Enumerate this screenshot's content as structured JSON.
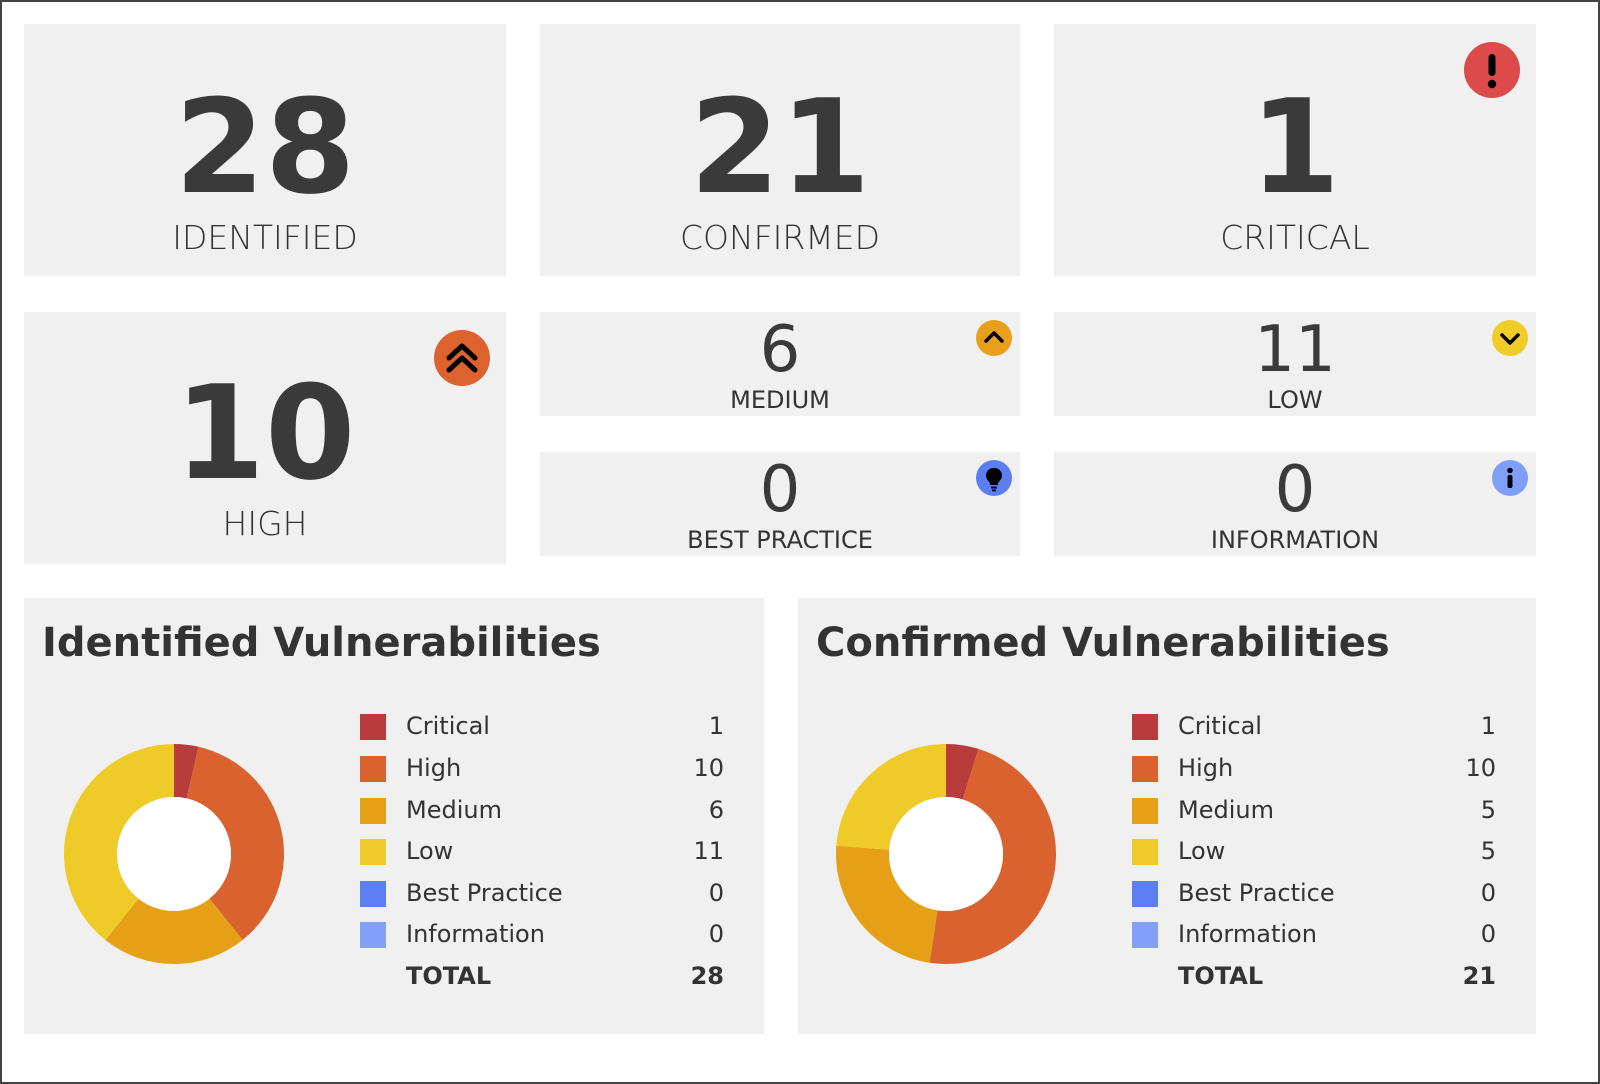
{
  "tiles": {
    "identified": {
      "value": "28",
      "label": "IDENTIFIED"
    },
    "confirmed": {
      "value": "21",
      "label": "CONFIRMED"
    },
    "critical": {
      "value": "1",
      "label": "CRITICAL",
      "icon": "exclamation-icon",
      "color": "#dc4a4a"
    },
    "high": {
      "value": "10",
      "label": "HIGH",
      "icon": "double-chevron-up-icon",
      "color": "#dc622e"
    },
    "medium": {
      "value": "6",
      "label": "MEDIUM",
      "icon": "chevron-up-icon",
      "color": "#e8a01a"
    },
    "low": {
      "value": "11",
      "label": "LOW",
      "icon": "chevron-down-icon",
      "color": "#f0cc28"
    },
    "best_practice": {
      "value": "0",
      "label": "BEST PRACTICE",
      "icon": "lightbulb-icon",
      "color": "#5b7ff0"
    },
    "information": {
      "value": "0",
      "label": "INFORMATION",
      "icon": "info-icon",
      "color": "#7f9ef8"
    }
  },
  "panels": {
    "identified": {
      "title": "Identified Vulnerabilities",
      "legend": [
        {
          "name": "Critical",
          "value": "1",
          "color": "#b93c3c"
        },
        {
          "name": "High",
          "value": "10",
          "color": "#d9622e"
        },
        {
          "name": "Medium",
          "value": "6",
          "color": "#e5a017"
        },
        {
          "name": "Low",
          "value": "11",
          "color": "#efcb2a"
        },
        {
          "name": "Best Practice",
          "value": "0",
          "color": "#5b7ff0"
        },
        {
          "name": "Information",
          "value": "0",
          "color": "#82a0f8"
        }
      ],
      "total_label": "TOTAL",
      "total_value": "28"
    },
    "confirmed": {
      "title": "Confirmed Vulnerabilities",
      "legend": [
        {
          "name": "Critical",
          "value": "1",
          "color": "#b93c3c"
        },
        {
          "name": "High",
          "value": "10",
          "color": "#d9622e"
        },
        {
          "name": "Medium",
          "value": "5",
          "color": "#e5a017"
        },
        {
          "name": "Low",
          "value": "5",
          "color": "#efcb2a"
        },
        {
          "name": "Best Practice",
          "value": "0",
          "color": "#5b7ff0"
        },
        {
          "name": "Information",
          "value": "0",
          "color": "#82a0f8"
        }
      ],
      "total_label": "TOTAL",
      "total_value": "21"
    }
  },
  "chart_data": [
    {
      "type": "pie",
      "title": "Identified Vulnerabilities",
      "categories": [
        "Critical",
        "High",
        "Medium",
        "Low",
        "Best Practice",
        "Information"
      ],
      "values": [
        1,
        10,
        6,
        11,
        0,
        0
      ],
      "colors": [
        "#b93c3c",
        "#d9622e",
        "#e5a017",
        "#efcb2a",
        "#5b7ff0",
        "#82a0f8"
      ],
      "total": 28,
      "donut": true,
      "legend_position": "right"
    },
    {
      "type": "pie",
      "title": "Confirmed Vulnerabilities",
      "categories": [
        "Critical",
        "High",
        "Medium",
        "Low",
        "Best Practice",
        "Information"
      ],
      "values": [
        1,
        10,
        5,
        5,
        0,
        0
      ],
      "colors": [
        "#b93c3c",
        "#d9622e",
        "#e5a017",
        "#efcb2a",
        "#5b7ff0",
        "#82a0f8"
      ],
      "total": 21,
      "donut": true,
      "legend_position": "right"
    }
  ]
}
